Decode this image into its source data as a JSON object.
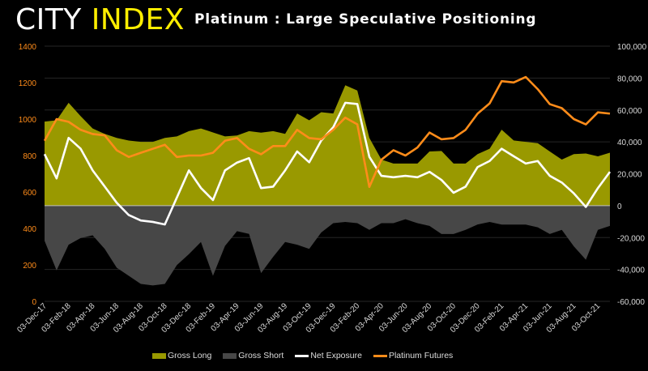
{
  "logo": {
    "part1": "CITY",
    "part2": "INDEX"
  },
  "colors": {
    "gross_long": "#999900",
    "gross_short": "#474747",
    "net": "#ffffff",
    "platinum": "#ff8c1a",
    "left_axis": "#ff8c1a",
    "right_axis": "#d9d9d9"
  },
  "chart_data": {
    "type": "area",
    "title": "Platinum : Large Speculative Positioning",
    "left_axis": {
      "ticks": [
        "0",
        "200",
        "400",
        "600",
        "800",
        "1000",
        "1200",
        "1400"
      ],
      "range": [
        0,
        1400
      ]
    },
    "right_axis": {
      "ticks": [
        "-60,000",
        "-40,000",
        "-20,000",
        "0",
        "20,000",
        "40,000",
        "60,000",
        "80,000",
        "100,000"
      ],
      "range": [
        -60000,
        100000
      ]
    },
    "x_tick_labels": [
      "03-Dec-17",
      "03-Feb-18",
      "03-Apr-18",
      "03-Jun-18",
      "03-Aug-18",
      "03-Oct-18",
      "03-Dec-18",
      "03-Feb-19",
      "03-Apr-19",
      "03-Jun-19",
      "03-Aug-19",
      "03-Oct-19",
      "03-Dec-19",
      "03-Feb-20",
      "03-Apr-20",
      "03-Jun-20",
      "03-Aug-20",
      "03-Oct-20",
      "03-Dec-20",
      "03-Feb-21",
      "03-Apr-21",
      "03-Jun-21",
      "03-Aug-21",
      "03-Oct-21"
    ],
    "x": [
      "Dec-17",
      "Jan-18",
      "Feb-18",
      "Mar-18",
      "Apr-18",
      "May-18",
      "Jun-18",
      "Jul-18",
      "Aug-18",
      "Sep-18",
      "Oct-18",
      "Nov-18",
      "Dec-18",
      "Jan-19",
      "Feb-19",
      "Mar-19",
      "Apr-19",
      "May-19",
      "Jun-19",
      "Jul-19",
      "Aug-19",
      "Sep-19",
      "Oct-19",
      "Nov-19",
      "Dec-19",
      "Jan-20",
      "Feb-20",
      "Mar-20",
      "Apr-20",
      "May-20",
      "Jun-20",
      "Jul-20",
      "Aug-20",
      "Sep-20",
      "Oct-20",
      "Nov-20",
      "Dec-20",
      "Jan-21",
      "Feb-21",
      "Mar-21",
      "Apr-21",
      "May-21",
      "Jun-21",
      "Jul-21",
      "Aug-21",
      "Sep-21",
      "Oct-21",
      "Nov-21"
    ],
    "series": [
      {
        "name": "Gross Long",
        "axis": "right",
        "kind": "area",
        "values": [
          52700,
          53500,
          64500,
          56100,
          48400,
          45000,
          42500,
          40800,
          40000,
          40000,
          42500,
          43400,
          46700,
          48400,
          45900,
          43400,
          44000,
          46700,
          45800,
          46700,
          45000,
          57800,
          53500,
          58600,
          57800,
          75500,
          72200,
          42500,
          28900,
          26400,
          26400,
          26400,
          34000,
          34300,
          26400,
          26400,
          32300,
          35700,
          47600,
          40900,
          40000,
          39200,
          34000,
          28900,
          32300,
          32700,
          30900,
          33200
        ]
      },
      {
        "name": "Gross Short",
        "axis": "right",
        "kind": "area",
        "values": [
          -22000,
          -40600,
          -24500,
          -20300,
          -18600,
          -27100,
          -38900,
          -44000,
          -49100,
          -50000,
          -49100,
          -37300,
          -30400,
          -22800,
          -44000,
          -25300,
          -16000,
          -17700,
          -42300,
          -32100,
          -22800,
          -24500,
          -27100,
          -16800,
          -11000,
          -10200,
          -11000,
          -15200,
          -11000,
          -11000,
          -8500,
          -11000,
          -12700,
          -17800,
          -17800,
          -15200,
          -11800,
          -10200,
          -11900,
          -11900,
          -11900,
          -13600,
          -17800,
          -15200,
          -25500,
          -33900,
          -15200,
          -12700
        ]
      },
      {
        "name": "Net Exposure",
        "axis": "right",
        "kind": "line",
        "values": [
          32300,
          17100,
          42500,
          35700,
          22100,
          12000,
          1800,
          -5900,
          -9300,
          -10200,
          -11800,
          5100,
          22100,
          11100,
          3500,
          22100,
          27000,
          29800,
          11000,
          11900,
          22100,
          34000,
          27200,
          40800,
          49200,
          64500,
          63700,
          30600,
          18700,
          17800,
          18700,
          17800,
          21200,
          16100,
          8100,
          11900,
          24200,
          28000,
          35700,
          31000,
          26400,
          28000,
          18700,
          14500,
          7700,
          -800,
          11000,
          21200
        ]
      },
      {
        "name": "Platinum Futures",
        "axis": "left",
        "kind": "line",
        "values": [
          881,
          1000,
          985,
          941,
          918,
          911,
          829,
          792,
          815,
          837,
          859,
          792,
          800,
          800,
          815,
          881,
          896,
          837,
          807,
          852,
          852,
          941,
          896,
          889,
          941,
          1008,
          971,
          628,
          777,
          829,
          800,
          844,
          926,
          889,
          896,
          941,
          1030,
          1086,
          1208,
          1201,
          1231,
          1164,
          1082,
          1060,
          1000,
          971,
          1037,
          1030
        ]
      }
    ],
    "legend": "bottom"
  }
}
